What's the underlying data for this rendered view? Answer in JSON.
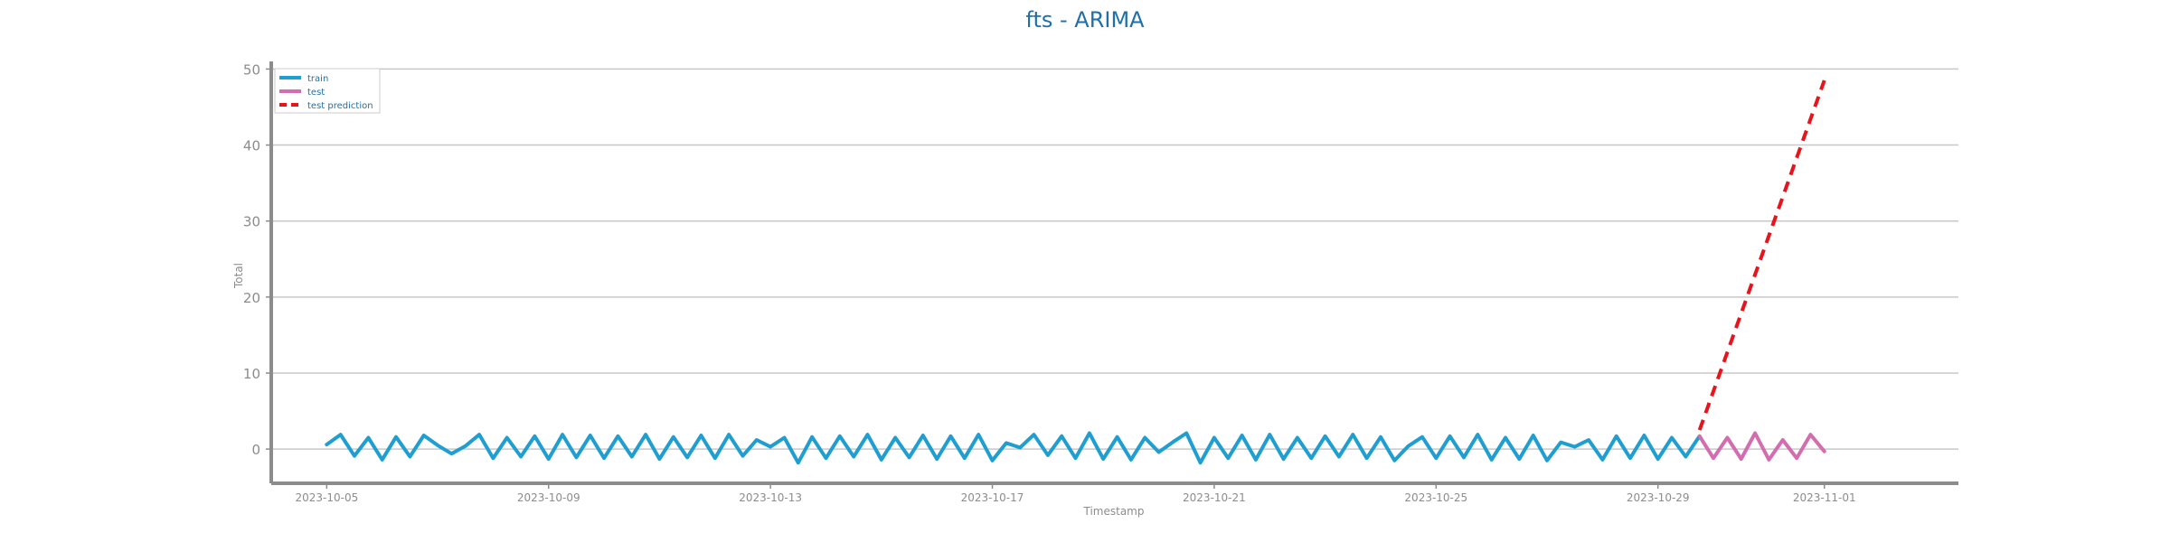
{
  "chart_data": {
    "type": "line",
    "title": "fts - ARIMA",
    "xlabel": "Timestamp",
    "ylabel": "Total",
    "ylim": [
      -4.5,
      51
    ],
    "xlim": [
      "2023-10-04T00:00",
      "2023-11-03T10:00"
    ],
    "y_ticks": [
      0,
      10,
      20,
      30,
      40,
      50
    ],
    "y_tick_labels": [
      "0",
      "10",
      "20",
      "30",
      "40",
      "50"
    ],
    "x_ticks": [
      "2023-10-05",
      "2023-10-09",
      "2023-10-13",
      "2023-10-17",
      "2023-10-21",
      "2023-10-25",
      "2023-10-29",
      "2023-11-01"
    ],
    "x_tick_labels": [
      "2023-10-05",
      "2023-10-09",
      "2023-10-13",
      "2023-10-17",
      "2023-10-21",
      "2023-10-25",
      "2023-10-29",
      "2023-11-01"
    ],
    "grid": "horizontal",
    "legend_position": "top-left",
    "colors": {
      "title": "#1f6fa8",
      "train": "#1f9ed1",
      "test": "#d36db0",
      "prediction": "#e8141c",
      "axis": "#8c8c8c",
      "grid": "#c8c8c8",
      "tick_text": "#8c8c8c",
      "legend_text": "#1f6fa8"
    },
    "series": [
      {
        "name": "train",
        "style": "solid",
        "x": [
          "2023-10-05T00:00",
          "2023-10-05T06:00",
          "2023-10-05T12:00",
          "2023-10-05T18:00",
          "2023-10-06T00:00",
          "2023-10-06T06:00",
          "2023-10-06T12:00",
          "2023-10-06T18:00",
          "2023-10-07T00:00",
          "2023-10-07T06:00",
          "2023-10-07T12:00",
          "2023-10-07T18:00",
          "2023-10-08T00:00",
          "2023-10-08T06:00",
          "2023-10-08T12:00",
          "2023-10-08T18:00",
          "2023-10-09T00:00",
          "2023-10-09T06:00",
          "2023-10-09T12:00",
          "2023-10-09T18:00",
          "2023-10-10T00:00",
          "2023-10-10T06:00",
          "2023-10-10T12:00",
          "2023-10-10T18:00",
          "2023-10-11T00:00",
          "2023-10-11T06:00",
          "2023-10-11T12:00",
          "2023-10-11T18:00",
          "2023-10-12T00:00",
          "2023-10-12T06:00",
          "2023-10-12T12:00",
          "2023-10-12T18:00",
          "2023-10-13T00:00",
          "2023-10-13T06:00",
          "2023-10-13T12:00",
          "2023-10-13T18:00",
          "2023-10-14T00:00",
          "2023-10-14T06:00",
          "2023-10-14T12:00",
          "2023-10-14T18:00",
          "2023-10-15T00:00",
          "2023-10-15T06:00",
          "2023-10-15T12:00",
          "2023-10-15T18:00",
          "2023-10-16T00:00",
          "2023-10-16T06:00",
          "2023-10-16T12:00",
          "2023-10-16T18:00",
          "2023-10-17T00:00",
          "2023-10-17T06:00",
          "2023-10-17T12:00",
          "2023-10-17T18:00",
          "2023-10-18T00:00",
          "2023-10-18T06:00",
          "2023-10-18T12:00",
          "2023-10-18T18:00",
          "2023-10-19T00:00",
          "2023-10-19T06:00",
          "2023-10-19T12:00",
          "2023-10-19T18:00",
          "2023-10-20T00:00",
          "2023-10-20T06:00",
          "2023-10-20T12:00",
          "2023-10-20T18:00",
          "2023-10-21T00:00",
          "2023-10-21T06:00",
          "2023-10-21T12:00",
          "2023-10-21T18:00",
          "2023-10-22T00:00",
          "2023-10-22T06:00",
          "2023-10-22T12:00",
          "2023-10-22T18:00",
          "2023-10-23T00:00",
          "2023-10-23T06:00",
          "2023-10-23T12:00",
          "2023-10-23T18:00",
          "2023-10-24T00:00",
          "2023-10-24T06:00",
          "2023-10-24T12:00",
          "2023-10-24T18:00",
          "2023-10-25T00:00",
          "2023-10-25T06:00",
          "2023-10-25T12:00",
          "2023-10-25T18:00",
          "2023-10-26T00:00",
          "2023-10-26T06:00",
          "2023-10-26T12:00",
          "2023-10-26T18:00",
          "2023-10-27T00:00",
          "2023-10-27T06:00",
          "2023-10-27T12:00",
          "2023-10-27T18:00",
          "2023-10-28T00:00",
          "2023-10-28T06:00",
          "2023-10-28T12:00",
          "2023-10-28T18:00",
          "2023-10-29T00:00",
          "2023-10-29T06:00",
          "2023-10-29T12:00",
          "2023-10-29T18:00"
        ],
        "y": [
          0.6,
          1.9,
          -0.9,
          1.5,
          -1.4,
          1.6,
          -1.0,
          1.8,
          0.5,
          -0.6,
          0.4,
          1.9,
          -1.2,
          1.5,
          -1.0,
          1.7,
          -1.3,
          1.9,
          -1.1,
          1.8,
          -1.2,
          1.7,
          -1.0,
          1.9,
          -1.3,
          1.6,
          -1.1,
          1.8,
          -1.2,
          1.9,
          -0.9,
          1.2,
          0.3,
          1.5,
          -1.8,
          1.6,
          -1.2,
          1.7,
          -1.0,
          1.9,
          -1.4,
          1.5,
          -1.1,
          1.8,
          -1.3,
          1.7,
          -1.2,
          1.9,
          -1.5,
          0.8,
          0.2,
          1.9,
          -0.8,
          1.7,
          -1.2,
          2.1,
          -1.3,
          1.6,
          -1.4,
          1.5,
          -0.4,
          0.9,
          2.1,
          -1.8,
          1.5,
          -1.2,
          1.8,
          -1.4,
          1.9,
          -1.3,
          1.5,
          -1.2,
          1.7,
          -1.0,
          1.9,
          -1.2,
          1.6,
          -1.5,
          0.4,
          1.6,
          -1.2,
          1.7,
          -1.1,
          1.9,
          -1.4,
          1.5,
          -1.3,
          1.8,
          -1.5,
          0.9,
          0.3,
          1.2,
          -1.4,
          1.7,
          -1.2,
          1.8,
          -1.3,
          1.5,
          -1.0,
          1.7
        ]
      },
      {
        "name": "test",
        "style": "solid",
        "x": [
          "2023-10-29T18:00",
          "2023-10-30T00:00",
          "2023-10-30T06:00",
          "2023-10-30T12:00",
          "2023-10-30T18:00",
          "2023-10-31T00:00",
          "2023-10-31T06:00",
          "2023-10-31T12:00",
          "2023-10-31T18:00",
          "2023-11-01T00:00"
        ],
        "y": [
          1.7,
          -1.2,
          1.5,
          -1.3,
          2.1,
          -1.4,
          1.2,
          -1.2,
          1.9,
          -0.3
        ]
      },
      {
        "name": "test prediction",
        "style": "dashed",
        "x": [
          "2023-10-29T18:00",
          "2023-11-01T00:00"
        ],
        "y": [
          2.5,
          48.5
        ]
      }
    ]
  }
}
